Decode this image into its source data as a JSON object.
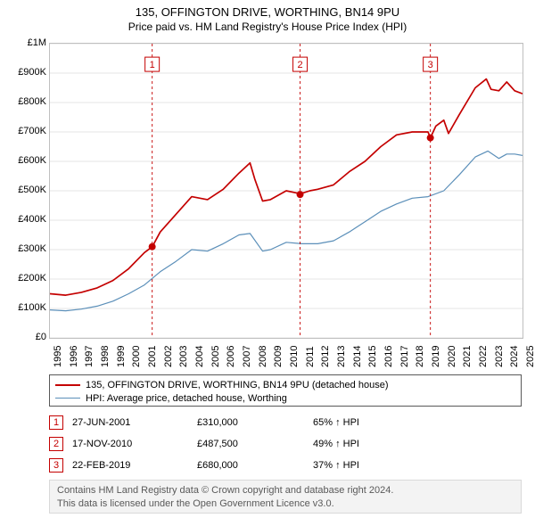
{
  "title": {
    "line1": "135, OFFINGTON DRIVE, WORTHING, BN14 9PU",
    "line2": "Price paid vs. HM Land Registry's House Price Index (HPI)"
  },
  "chart": {
    "type": "line",
    "plot_bg": "#ffffff",
    "border_color": "#bfbfbf",
    "grid_color": "#e6e6e6",
    "x": {
      "min": 1995,
      "max": 2025,
      "tick_step": 1,
      "tick_rotation": -90,
      "tick_fontsize": 11,
      "labels": [
        "1995",
        "1996",
        "1997",
        "1998",
        "1999",
        "2000",
        "2001",
        "2002",
        "2003",
        "2004",
        "2005",
        "2006",
        "2007",
        "2008",
        "2009",
        "2010",
        "2011",
        "2012",
        "2013",
        "2014",
        "2015",
        "2016",
        "2017",
        "2018",
        "2019",
        "2020",
        "2021",
        "2022",
        "2023",
        "2024",
        "2025"
      ]
    },
    "y": {
      "min": 0,
      "max": 1000000,
      "tick_step": 100000,
      "tick_fontsize": 11,
      "labels": [
        "£0",
        "£100K",
        "£200K",
        "£300K",
        "£400K",
        "£500K",
        "£600K",
        "£700K",
        "£800K",
        "£900K",
        "£1M"
      ]
    },
    "series": [
      {
        "id": "property",
        "label": "135, OFFINGTON DRIVE, WORTHING, BN14 9PU (detached house)",
        "color": "#c40000",
        "line_width": 1.7,
        "points": [
          [
            1995.0,
            150000
          ],
          [
            1996.0,
            145000
          ],
          [
            1997.0,
            155000
          ],
          [
            1998.0,
            170000
          ],
          [
            1999.0,
            195000
          ],
          [
            2000.0,
            235000
          ],
          [
            2001.0,
            290000
          ],
          [
            2001.5,
            310000
          ],
          [
            2002.0,
            360000
          ],
          [
            2003.0,
            420000
          ],
          [
            2004.0,
            480000
          ],
          [
            2005.0,
            470000
          ],
          [
            2006.0,
            505000
          ],
          [
            2007.0,
            560000
          ],
          [
            2007.7,
            595000
          ],
          [
            2008.0,
            540000
          ],
          [
            2008.5,
            465000
          ],
          [
            2009.0,
            470000
          ],
          [
            2010.0,
            500000
          ],
          [
            2010.9,
            490000
          ],
          [
            2011.5,
            500000
          ],
          [
            2012.0,
            505000
          ],
          [
            2013.0,
            520000
          ],
          [
            2014.0,
            565000
          ],
          [
            2015.0,
            600000
          ],
          [
            2016.0,
            650000
          ],
          [
            2017.0,
            690000
          ],
          [
            2018.0,
            700000
          ],
          [
            2019.0,
            700000
          ],
          [
            2019.15,
            680000
          ],
          [
            2019.5,
            720000
          ],
          [
            2020.0,
            740000
          ],
          [
            2020.3,
            695000
          ],
          [
            2021.0,
            760000
          ],
          [
            2022.0,
            850000
          ],
          [
            2022.7,
            880000
          ],
          [
            2023.0,
            845000
          ],
          [
            2023.5,
            840000
          ],
          [
            2024.0,
            870000
          ],
          [
            2024.5,
            840000
          ],
          [
            2025.0,
            830000
          ]
        ]
      },
      {
        "id": "hpi",
        "label": "HPI: Average price, detached house, Worthing",
        "color": "#5b8fb9",
        "line_width": 1.2,
        "points": [
          [
            1995.0,
            95000
          ],
          [
            1996.0,
            92000
          ],
          [
            1997.0,
            98000
          ],
          [
            1998.0,
            108000
          ],
          [
            1999.0,
            125000
          ],
          [
            2000.0,
            150000
          ],
          [
            2001.0,
            180000
          ],
          [
            2002.0,
            225000
          ],
          [
            2003.0,
            260000
          ],
          [
            2004.0,
            300000
          ],
          [
            2005.0,
            295000
          ],
          [
            2006.0,
            320000
          ],
          [
            2007.0,
            350000
          ],
          [
            2007.7,
            355000
          ],
          [
            2008.5,
            295000
          ],
          [
            2009.0,
            300000
          ],
          [
            2010.0,
            325000
          ],
          [
            2011.0,
            320000
          ],
          [
            2012.0,
            320000
          ],
          [
            2013.0,
            330000
          ],
          [
            2014.0,
            360000
          ],
          [
            2015.0,
            395000
          ],
          [
            2016.0,
            430000
          ],
          [
            2017.0,
            455000
          ],
          [
            2018.0,
            475000
          ],
          [
            2019.0,
            480000
          ],
          [
            2020.0,
            500000
          ],
          [
            2021.0,
            555000
          ],
          [
            2022.0,
            615000
          ],
          [
            2022.8,
            635000
          ],
          [
            2023.5,
            610000
          ],
          [
            2024.0,
            625000
          ],
          [
            2024.5,
            625000
          ],
          [
            2025.0,
            620000
          ]
        ]
      }
    ],
    "sale_markers": [
      {
        "n": "1",
        "x": 2001.49,
        "y": 310000
      },
      {
        "n": "2",
        "x": 2010.88,
        "y": 487500
      },
      {
        "n": "3",
        "x": 2019.15,
        "y": 680000
      }
    ],
    "marker": {
      "dot_color": "#c40000",
      "dot_radius": 4,
      "vline_color": "#c40000",
      "vline_dash": "3,3",
      "badge_border": "#c40000",
      "badge_text_color": "#c40000",
      "badge_bg": "#ffffff",
      "badge_size": 16,
      "badge_y_value": 930000
    }
  },
  "legend": {
    "border_color": "#595959",
    "fontsize": 11,
    "items": [
      {
        "color": "#c40000",
        "width": 2,
        "label": "135, OFFINGTON DRIVE, WORTHING, BN14 9PU (detached house)"
      },
      {
        "color": "#5b8fb9",
        "width": 1.5,
        "label": "HPI: Average price, detached house, Worthing"
      }
    ]
  },
  "sales": [
    {
      "n": "1",
      "date": "27-JUN-2001",
      "price": "£310,000",
      "pct": "65% ↑ HPI"
    },
    {
      "n": "2",
      "date": "17-NOV-2010",
      "price": "£487,500",
      "pct": "49% ↑ HPI"
    },
    {
      "n": "3",
      "date": "22-FEB-2019",
      "price": "£680,000",
      "pct": "37% ↑ HPI"
    }
  ],
  "footer": {
    "bg": "#f3f3f3",
    "border": "#d9d9d9",
    "text_color": "#595959",
    "line1": "Contains HM Land Registry data © Crown copyright and database right 2024.",
    "line2": "This data is licensed under the Open Government Licence v3.0."
  }
}
